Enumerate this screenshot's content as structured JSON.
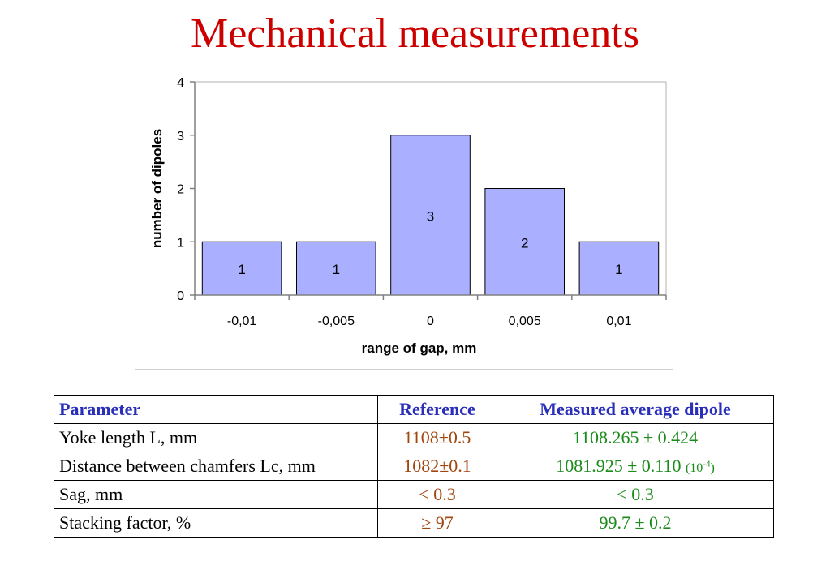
{
  "title": "Mechanical measurements",
  "colors": {
    "title": "#cc0000",
    "bar_fill": "#aab0ff",
    "table_header": "#2a2fb8",
    "reference": "#a0460e",
    "measured": "#1a8a1a"
  },
  "chart_data": {
    "type": "bar",
    "categories": [
      "-0,01",
      "-0,005",
      "0",
      "0,005",
      "0,01"
    ],
    "values": [
      1,
      1,
      3,
      2,
      1
    ],
    "data_labels": [
      "1",
      "1",
      "3",
      "2",
      "1"
    ],
    "xlabel": "range of gap, mm",
    "ylabel": "number of dipoles",
    "ylim": [
      0,
      4
    ],
    "yticks": [
      "0",
      "1",
      "2",
      "3",
      "4"
    ],
    "grid": false,
    "legend": "none"
  },
  "table": {
    "headers": [
      "Parameter",
      "Reference",
      "Measured average dipole"
    ],
    "rows": [
      {
        "parameter": "Yoke length L, mm",
        "reference": "1108±0.5",
        "measured": "1108.265 ± 0.424",
        "unit_base": "",
        "unit_exp": "",
        "unit_close": ""
      },
      {
        "parameter": "Distance between chamfers Lc, mm",
        "reference": "1082±0.1",
        "measured": "1081.925 ± 0.110",
        "unit_base": "(10",
        "unit_exp": "-4",
        "unit_close": ")"
      },
      {
        "parameter": "Sag, mm",
        "reference": "< 0.3",
        "measured": "< 0.3",
        "unit_base": "",
        "unit_exp": "",
        "unit_close": ""
      },
      {
        "parameter": "Stacking factor, %",
        "reference": "≥ 97",
        "measured": "99.7 ± 0.2",
        "unit_base": "",
        "unit_exp": "",
        "unit_close": ""
      }
    ]
  }
}
